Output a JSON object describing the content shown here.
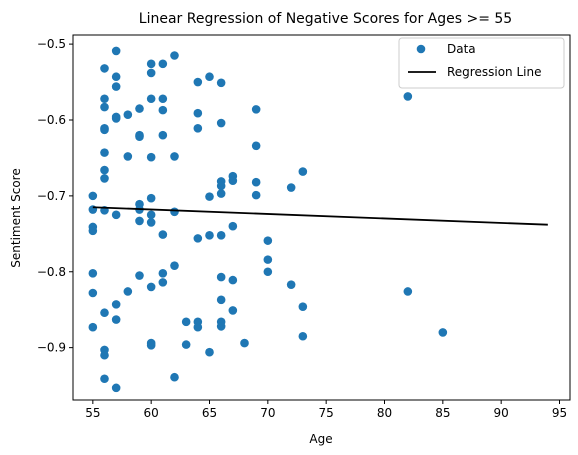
{
  "chart_data": {
    "type": "scatter",
    "title": "Linear Regression of Negative Scores for Ages >= 55",
    "xlabel": "Age",
    "ylabel": "Sentiment Score",
    "xlim": [
      53.3,
      95.9
    ],
    "ylim": [
      -0.969,
      -0.488
    ],
    "xticks": [
      55,
      60,
      65,
      70,
      75,
      80,
      85,
      90,
      95
    ],
    "yticks": [
      -0.9,
      -0.8,
      -0.7,
      -0.6,
      -0.5
    ],
    "ytick_labels": [
      "−0.9",
      "−0.8",
      "−0.7",
      "−0.6",
      "−0.5"
    ],
    "grid": false,
    "legend_position": "upper-right",
    "legend": {
      "scatter_label": "Data",
      "line_label": "Regression Line"
    },
    "colors": {
      "scatter": "#1f77b4",
      "line": "#000000"
    },
    "series": [
      {
        "name": "Data",
        "kind": "scatter",
        "points": [
          [
            55,
            -0.7
          ],
          [
            55,
            -0.718
          ],
          [
            55,
            -0.741
          ],
          [
            55,
            -0.746
          ],
          [
            55,
            -0.802
          ],
          [
            55,
            -0.828
          ],
          [
            55,
            -0.873
          ],
          [
            56,
            -0.532
          ],
          [
            56,
            -0.572
          ],
          [
            56,
            -0.583
          ],
          [
            56,
            -0.611
          ],
          [
            56,
            -0.613
          ],
          [
            56,
            -0.643
          ],
          [
            56,
            -0.666
          ],
          [
            56,
            -0.677
          ],
          [
            56,
            -0.719
          ],
          [
            56,
            -0.854
          ],
          [
            56,
            -0.903
          ],
          [
            56,
            -0.91
          ],
          [
            56,
            -0.941
          ],
          [
            57,
            -0.509
          ],
          [
            57,
            -0.543
          ],
          [
            57,
            -0.556
          ],
          [
            57,
            -0.596
          ],
          [
            57,
            -0.598
          ],
          [
            57,
            -0.725
          ],
          [
            57,
            -0.843
          ],
          [
            57,
            -0.863
          ],
          [
            57,
            -0.953
          ],
          [
            58,
            -0.593
          ],
          [
            58,
            -0.648
          ],
          [
            58,
            -0.826
          ],
          [
            59,
            -0.585
          ],
          [
            59,
            -0.62
          ],
          [
            59,
            -0.622
          ],
          [
            59,
            -0.711
          ],
          [
            59,
            -0.718
          ],
          [
            59,
            -0.733
          ],
          [
            59,
            -0.805
          ],
          [
            60,
            -0.526
          ],
          [
            60,
            -0.538
          ],
          [
            60,
            -0.572
          ],
          [
            60,
            -0.649
          ],
          [
            60,
            -0.703
          ],
          [
            60,
            -0.725
          ],
          [
            60,
            -0.735
          ],
          [
            60,
            -0.82
          ],
          [
            60,
            -0.894
          ],
          [
            60,
            -0.897
          ],
          [
            61,
            -0.526
          ],
          [
            61,
            -0.572
          ],
          [
            61,
            -0.587
          ],
          [
            61,
            -0.62
          ],
          [
            61,
            -0.751
          ],
          [
            61,
            -0.802
          ],
          [
            61,
            -0.814
          ],
          [
            62,
            -0.515
          ],
          [
            62,
            -0.648
          ],
          [
            62,
            -0.721
          ],
          [
            62,
            -0.792
          ],
          [
            62,
            -0.939
          ],
          [
            63,
            -0.866
          ],
          [
            63,
            -0.896
          ],
          [
            64,
            -0.55
          ],
          [
            64,
            -0.591
          ],
          [
            64,
            -0.611
          ],
          [
            64,
            -0.756
          ],
          [
            64,
            -0.866
          ],
          [
            64,
            -0.873
          ],
          [
            65,
            -0.543
          ],
          [
            65,
            -0.701
          ],
          [
            65,
            -0.752
          ],
          [
            65,
            -0.906
          ],
          [
            66,
            -0.551
          ],
          [
            66,
            -0.604
          ],
          [
            66,
            -0.681
          ],
          [
            66,
            -0.687
          ],
          [
            66,
            -0.697
          ],
          [
            66,
            -0.752
          ],
          [
            66,
            -0.807
          ],
          [
            66,
            -0.837
          ],
          [
            66,
            -0.866
          ],
          [
            66,
            -0.872
          ],
          [
            67,
            -0.674
          ],
          [
            67,
            -0.68
          ],
          [
            67,
            -0.74
          ],
          [
            67,
            -0.811
          ],
          [
            67,
            -0.851
          ],
          [
            68,
            -0.894
          ],
          [
            69,
            -0.586
          ],
          [
            69,
            -0.634
          ],
          [
            69,
            -0.682
          ],
          [
            69,
            -0.699
          ],
          [
            70,
            -0.759
          ],
          [
            70,
            -0.784
          ],
          [
            70,
            -0.8
          ],
          [
            72,
            -0.689
          ],
          [
            72,
            -0.817
          ],
          [
            73,
            -0.668
          ],
          [
            73,
            -0.846
          ],
          [
            73,
            -0.885
          ],
          [
            82,
            -0.569
          ],
          [
            82,
            -0.826
          ],
          [
            85,
            -0.88
          ]
        ]
      },
      {
        "name": "Regression Line",
        "kind": "line",
        "x": [
          55,
          94
        ],
        "y": [
          -0.715,
          -0.738
        ]
      }
    ]
  }
}
